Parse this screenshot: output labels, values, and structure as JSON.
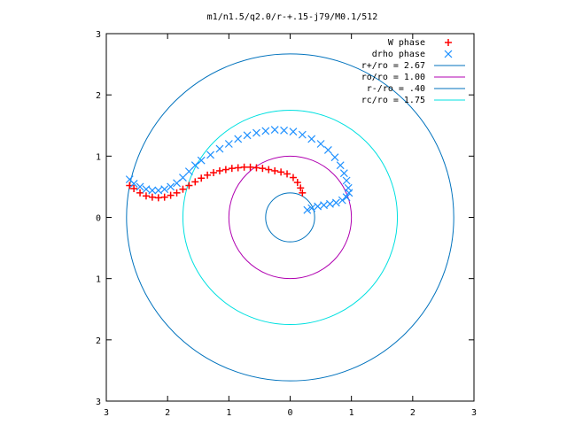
{
  "chart_data": {
    "type": "scatter",
    "title": "m1/n1.5/q2.0/r-+.15-j79/M0.1/512",
    "xlabel": "",
    "ylabel": "",
    "xlim": [
      -3,
      3
    ],
    "ylim": [
      -3,
      3
    ],
    "x_ticks": [
      -3,
      -2,
      -1,
      0,
      1,
      2,
      3
    ],
    "y_ticks": [
      -3,
      -2,
      -1,
      0,
      1,
      2,
      3
    ],
    "x_tick_labels": [
      "3",
      "2",
      "1",
      "0",
      "1",
      "2",
      "3"
    ],
    "y_tick_labels": [
      "3",
      "2",
      "1",
      "0",
      "1",
      "2",
      "3"
    ],
    "grid": false,
    "legend_position": "top-right",
    "series": [
      {
        "name": "W phase",
        "kind": "points",
        "marker": "plus",
        "color": "#ff0000",
        "points": [
          [
            -2.62,
            0.52
          ],
          [
            -2.55,
            0.47
          ],
          [
            -2.45,
            0.4
          ],
          [
            -2.35,
            0.35
          ],
          [
            -2.25,
            0.33
          ],
          [
            -2.15,
            0.32
          ],
          [
            -2.05,
            0.33
          ],
          [
            -1.95,
            0.36
          ],
          [
            -1.85,
            0.4
          ],
          [
            -1.75,
            0.46
          ],
          [
            -1.65,
            0.52
          ],
          [
            -1.55,
            0.58
          ],
          [
            -1.45,
            0.64
          ],
          [
            -1.35,
            0.69
          ],
          [
            -1.25,
            0.73
          ],
          [
            -1.15,
            0.76
          ],
          [
            -1.05,
            0.78
          ],
          [
            -0.95,
            0.8
          ],
          [
            -0.85,
            0.81
          ],
          [
            -0.75,
            0.82
          ],
          [
            -0.65,
            0.82
          ],
          [
            -0.55,
            0.81
          ],
          [
            -0.45,
            0.8
          ],
          [
            -0.35,
            0.78
          ],
          [
            -0.25,
            0.76
          ],
          [
            -0.15,
            0.74
          ],
          [
            -0.05,
            0.71
          ],
          [
            0.05,
            0.65
          ],
          [
            0.12,
            0.57
          ],
          [
            0.17,
            0.48
          ],
          [
            0.2,
            0.4
          ]
        ]
      },
      {
        "name": "drho phase",
        "kind": "points",
        "marker": "x",
        "color": "#1e90ff",
        "points": [
          [
            -2.62,
            0.62
          ],
          [
            -2.55,
            0.55
          ],
          [
            -2.45,
            0.5
          ],
          [
            -2.35,
            0.46
          ],
          [
            -2.25,
            0.44
          ],
          [
            -2.15,
            0.44
          ],
          [
            -2.05,
            0.46
          ],
          [
            -1.95,
            0.5
          ],
          [
            -1.85,
            0.56
          ],
          [
            -1.75,
            0.65
          ],
          [
            -1.65,
            0.75
          ],
          [
            -1.55,
            0.85
          ],
          [
            -1.45,
            0.93
          ],
          [
            -1.3,
            1.02
          ],
          [
            -1.15,
            1.12
          ],
          [
            -1.0,
            1.2
          ],
          [
            -0.85,
            1.28
          ],
          [
            -0.7,
            1.34
          ],
          [
            -0.55,
            1.38
          ],
          [
            -0.4,
            1.41
          ],
          [
            -0.25,
            1.43
          ],
          [
            -0.1,
            1.42
          ],
          [
            0.05,
            1.4
          ],
          [
            0.2,
            1.35
          ],
          [
            0.35,
            1.28
          ],
          [
            0.5,
            1.2
          ],
          [
            0.62,
            1.1
          ],
          [
            0.73,
            0.98
          ],
          [
            0.82,
            0.85
          ],
          [
            0.88,
            0.72
          ],
          [
            0.92,
            0.6
          ],
          [
            0.95,
            0.48
          ],
          [
            0.96,
            0.4
          ],
          [
            0.92,
            0.33
          ],
          [
            0.85,
            0.28
          ],
          [
            0.75,
            0.24
          ],
          [
            0.65,
            0.22
          ],
          [
            0.55,
            0.2
          ],
          [
            0.45,
            0.18
          ],
          [
            0.35,
            0.15
          ],
          [
            0.28,
            0.12
          ]
        ]
      },
      {
        "name": "r+/ro = 2.67",
        "kind": "circle",
        "radius": 2.67,
        "color": "#0072bd"
      },
      {
        "name": "ro/ro = 1.00",
        "kind": "circle",
        "radius": 1.0,
        "color": "#b000b0"
      },
      {
        "name": "r-/ro = .40",
        "kind": "circle",
        "radius": 0.4,
        "color": "#0072bd"
      },
      {
        "name": "rc/ro = 1.75",
        "kind": "circle",
        "radius": 1.75,
        "color": "#00e0e0"
      }
    ]
  }
}
